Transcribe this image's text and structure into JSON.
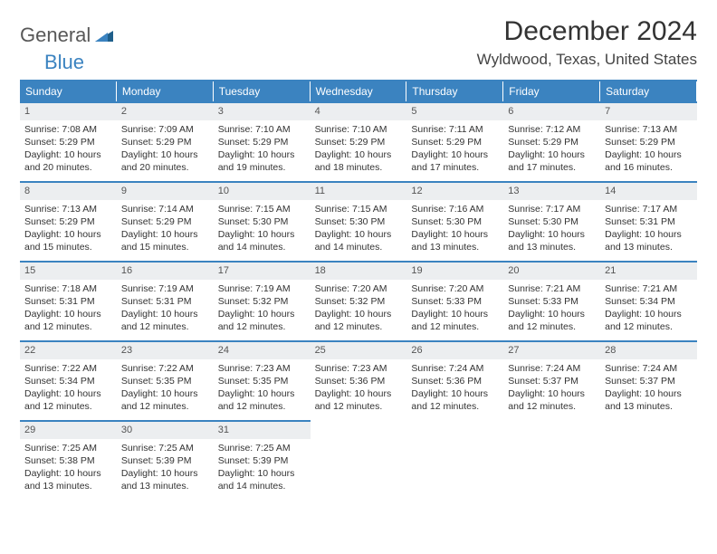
{
  "logo": {
    "general": "General",
    "blue": "Blue"
  },
  "title": "December 2024",
  "location": "Wyldwood, Texas, United States",
  "colors": {
    "accent": "#3b83c0",
    "header_text": "#ffffff",
    "daynum_bg": "#eceef0",
    "text": "#333333"
  },
  "day_headers": [
    "Sunday",
    "Monday",
    "Tuesday",
    "Wednesday",
    "Thursday",
    "Friday",
    "Saturday"
  ],
  "days": [
    {
      "num": "1",
      "sunrise": "7:08 AM",
      "sunset": "5:29 PM",
      "daylight": "10 hours and 20 minutes."
    },
    {
      "num": "2",
      "sunrise": "7:09 AM",
      "sunset": "5:29 PM",
      "daylight": "10 hours and 20 minutes."
    },
    {
      "num": "3",
      "sunrise": "7:10 AM",
      "sunset": "5:29 PM",
      "daylight": "10 hours and 19 minutes."
    },
    {
      "num": "4",
      "sunrise": "7:10 AM",
      "sunset": "5:29 PM",
      "daylight": "10 hours and 18 minutes."
    },
    {
      "num": "5",
      "sunrise": "7:11 AM",
      "sunset": "5:29 PM",
      "daylight": "10 hours and 17 minutes."
    },
    {
      "num": "6",
      "sunrise": "7:12 AM",
      "sunset": "5:29 PM",
      "daylight": "10 hours and 17 minutes."
    },
    {
      "num": "7",
      "sunrise": "7:13 AM",
      "sunset": "5:29 PM",
      "daylight": "10 hours and 16 minutes."
    },
    {
      "num": "8",
      "sunrise": "7:13 AM",
      "sunset": "5:29 PM",
      "daylight": "10 hours and 15 minutes."
    },
    {
      "num": "9",
      "sunrise": "7:14 AM",
      "sunset": "5:29 PM",
      "daylight": "10 hours and 15 minutes."
    },
    {
      "num": "10",
      "sunrise": "7:15 AM",
      "sunset": "5:30 PM",
      "daylight": "10 hours and 14 minutes."
    },
    {
      "num": "11",
      "sunrise": "7:15 AM",
      "sunset": "5:30 PM",
      "daylight": "10 hours and 14 minutes."
    },
    {
      "num": "12",
      "sunrise": "7:16 AM",
      "sunset": "5:30 PM",
      "daylight": "10 hours and 13 minutes."
    },
    {
      "num": "13",
      "sunrise": "7:17 AM",
      "sunset": "5:30 PM",
      "daylight": "10 hours and 13 minutes."
    },
    {
      "num": "14",
      "sunrise": "7:17 AM",
      "sunset": "5:31 PM",
      "daylight": "10 hours and 13 minutes."
    },
    {
      "num": "15",
      "sunrise": "7:18 AM",
      "sunset": "5:31 PM",
      "daylight": "10 hours and 12 minutes."
    },
    {
      "num": "16",
      "sunrise": "7:19 AM",
      "sunset": "5:31 PM",
      "daylight": "10 hours and 12 minutes."
    },
    {
      "num": "17",
      "sunrise": "7:19 AM",
      "sunset": "5:32 PM",
      "daylight": "10 hours and 12 minutes."
    },
    {
      "num": "18",
      "sunrise": "7:20 AM",
      "sunset": "5:32 PM",
      "daylight": "10 hours and 12 minutes."
    },
    {
      "num": "19",
      "sunrise": "7:20 AM",
      "sunset": "5:33 PM",
      "daylight": "10 hours and 12 minutes."
    },
    {
      "num": "20",
      "sunrise": "7:21 AM",
      "sunset": "5:33 PM",
      "daylight": "10 hours and 12 minutes."
    },
    {
      "num": "21",
      "sunrise": "7:21 AM",
      "sunset": "5:34 PM",
      "daylight": "10 hours and 12 minutes."
    },
    {
      "num": "22",
      "sunrise": "7:22 AM",
      "sunset": "5:34 PM",
      "daylight": "10 hours and 12 minutes."
    },
    {
      "num": "23",
      "sunrise": "7:22 AM",
      "sunset": "5:35 PM",
      "daylight": "10 hours and 12 minutes."
    },
    {
      "num": "24",
      "sunrise": "7:23 AM",
      "sunset": "5:35 PM",
      "daylight": "10 hours and 12 minutes."
    },
    {
      "num": "25",
      "sunrise": "7:23 AM",
      "sunset": "5:36 PM",
      "daylight": "10 hours and 12 minutes."
    },
    {
      "num": "26",
      "sunrise": "7:24 AM",
      "sunset": "5:36 PM",
      "daylight": "10 hours and 12 minutes."
    },
    {
      "num": "27",
      "sunrise": "7:24 AM",
      "sunset": "5:37 PM",
      "daylight": "10 hours and 12 minutes."
    },
    {
      "num": "28",
      "sunrise": "7:24 AM",
      "sunset": "5:37 PM",
      "daylight": "10 hours and 13 minutes."
    },
    {
      "num": "29",
      "sunrise": "7:25 AM",
      "sunset": "5:38 PM",
      "daylight": "10 hours and 13 minutes."
    },
    {
      "num": "30",
      "sunrise": "7:25 AM",
      "sunset": "5:39 PM",
      "daylight": "10 hours and 13 minutes."
    },
    {
      "num": "31",
      "sunrise": "7:25 AM",
      "sunset": "5:39 PM",
      "daylight": "10 hours and 14 minutes."
    }
  ],
  "labels": {
    "sunrise": "Sunrise: ",
    "sunset": "Sunset: ",
    "daylight": "Daylight: "
  }
}
